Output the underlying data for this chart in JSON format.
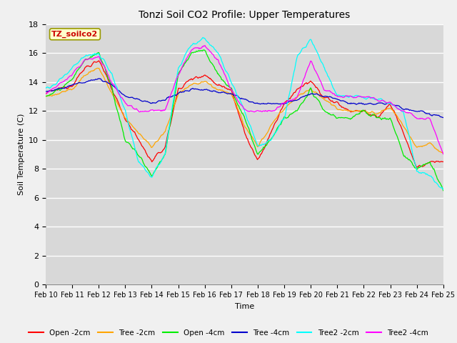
{
  "title": "Tonzi Soil CO2 Profile: Upper Temperatures",
  "xlabel": "Time",
  "ylabel": "Soil Temperature (C)",
  "watermark": "TZ_soilco2",
  "ylim": [
    0,
    18
  ],
  "yticks": [
    0,
    2,
    4,
    6,
    8,
    10,
    12,
    14,
    16,
    18
  ],
  "plot_bg_color": "#d8d8d8",
  "fig_bg_color": "#f0f0f0",
  "series_colors": {
    "Open -2cm": "#ff0000",
    "Tree -2cm": "#ffa500",
    "Open -4cm": "#00ee00",
    "Tree -4cm": "#0000cc",
    "Tree2 -2cm": "#00ffff",
    "Tree2 -4cm": "#ff00ff"
  },
  "n_points": 600,
  "date_start": 10,
  "date_end": 25,
  "xtick_labels": [
    "Feb 10",
    "Feb 11",
    "Feb 12",
    "Feb 13",
    "Feb 14",
    "Feb 15",
    "Feb 16",
    "Feb 17",
    "Feb 18",
    "Feb 19",
    "Feb 20",
    "Feb 21",
    "Feb 22",
    "Feb 23",
    "Feb 24",
    "Feb 25"
  ],
  "legend_labels": [
    "Open -2cm",
    "Tree -2cm",
    "Open -4cm",
    "Tree -4cm",
    "Tree2 -2cm",
    "Tree2 -4cm"
  ]
}
